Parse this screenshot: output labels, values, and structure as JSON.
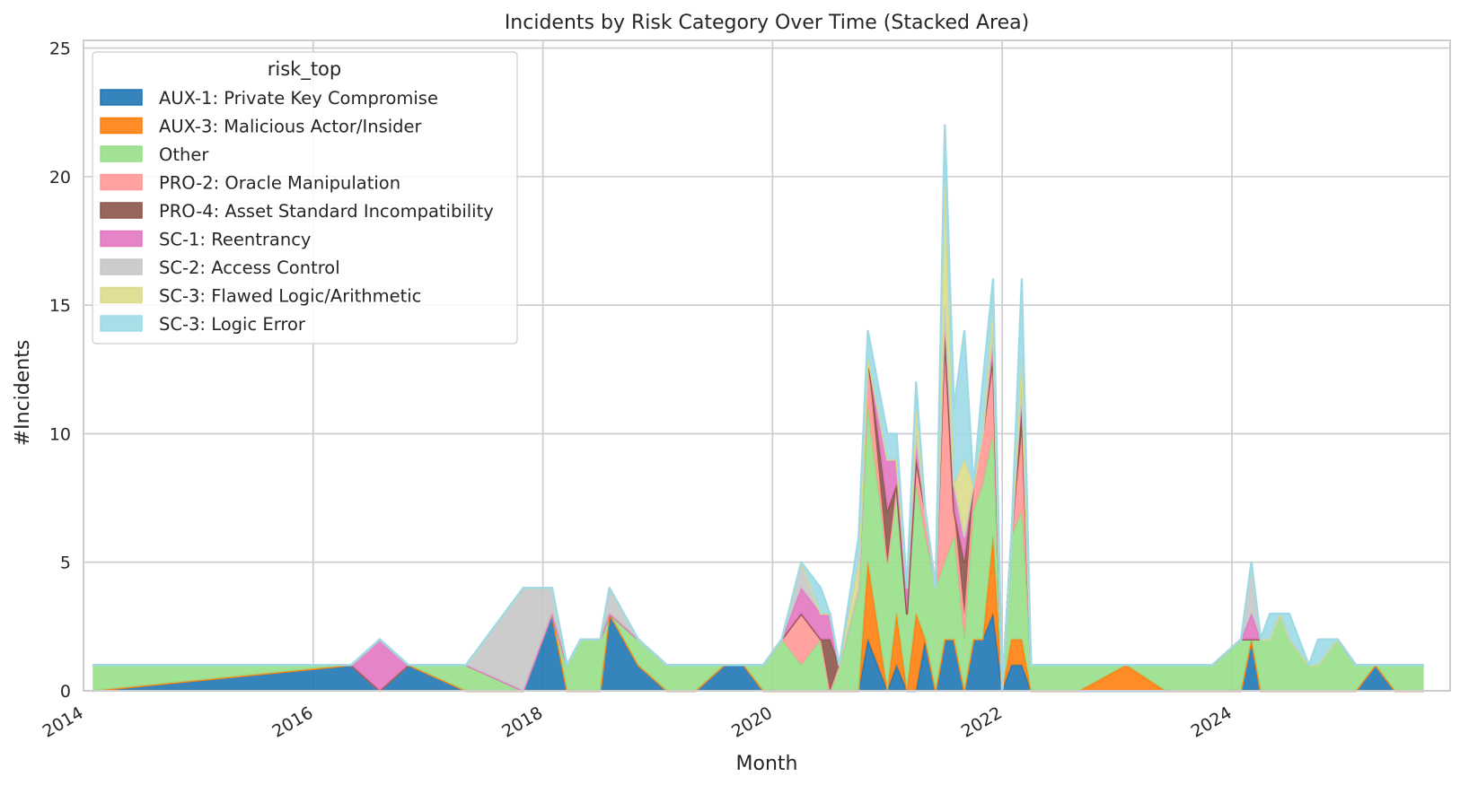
{
  "chart_data": {
    "type": "area",
    "stacked": true,
    "title": "Incidents by Risk Category Over Time (Stacked Area)",
    "xlabel": "Month",
    "ylabel": "#Incidents",
    "xlim": [
      2014.0,
      2025.9
    ],
    "ylim": [
      0,
      25.3
    ],
    "yticks": [
      0,
      5,
      10,
      15,
      20,
      25
    ],
    "xticks": [
      {
        "value": 2014,
        "label": "2014"
      },
      {
        "value": 2016,
        "label": "2016"
      },
      {
        "value": 2018,
        "label": "2018"
      },
      {
        "value": 2020,
        "label": "2020"
      },
      {
        "value": 2022,
        "label": "2022"
      },
      {
        "value": 2024,
        "label": "2024"
      }
    ],
    "grid": true,
    "legend": {
      "title": "risk_top",
      "placement": "upper left"
    },
    "x": [
      2014.08,
      2016.33,
      2016.58,
      2016.83,
      2017.33,
      2017.83,
      2018.08,
      2018.21,
      2018.33,
      2018.5,
      2018.58,
      2018.83,
      2019.08,
      2019.33,
      2019.58,
      2019.75,
      2019.92,
      2020.08,
      2020.25,
      2020.42,
      2020.5,
      2020.58,
      2020.75,
      2020.83,
      2021.0,
      2021.08,
      2021.17,
      2021.25,
      2021.33,
      2021.42,
      2021.5,
      2021.58,
      2021.67,
      2021.75,
      2021.83,
      2021.92,
      2022.0,
      2022.08,
      2022.17,
      2022.25,
      2022.33,
      2022.42,
      2022.67,
      2023.08,
      2023.42,
      2023.83,
      2024.08,
      2024.17,
      2024.25,
      2024.33,
      2024.42,
      2024.5,
      2024.67,
      2024.75,
      2024.92,
      2025.08,
      2025.25,
      2025.42,
      2025.67
    ],
    "series": [
      {
        "name": "AUX-1: Private Key Compromise",
        "color": "#1f77b4",
        "values": [
          0,
          1,
          0,
          1,
          0,
          0,
          3,
          0,
          0,
          0,
          3,
          1,
          0,
          0,
          1,
          1,
          0,
          0,
          0,
          0,
          0,
          0,
          0,
          2,
          0,
          1,
          0,
          0,
          2,
          0,
          2,
          2,
          0,
          2,
          2,
          3,
          0,
          1,
          1,
          0,
          0,
          0,
          0,
          0,
          0,
          0,
          0,
          2,
          0,
          0,
          0,
          0,
          0,
          0,
          0,
          0,
          1,
          0,
          0
        ]
      },
      {
        "name": "AUX-3: Malicious Actor/Insider",
        "color": "#ff7f0e",
        "values": [
          0,
          0,
          0,
          0,
          0,
          0,
          0,
          0,
          0,
          0,
          0,
          0,
          0,
          0,
          0,
          0,
          0,
          0,
          0,
          0,
          0,
          0,
          0,
          3,
          0,
          2,
          0,
          3,
          0,
          0,
          0,
          0,
          0,
          0,
          0,
          3,
          0,
          1,
          1,
          0,
          0,
          0,
          0,
          1,
          0,
          0,
          0,
          0,
          0,
          0,
          0,
          0,
          0,
          0,
          0,
          0,
          0,
          0,
          0
        ]
      },
      {
        "name": "Other",
        "color": "#98df8a",
        "values": [
          1,
          0,
          0,
          0,
          1,
          0,
          0,
          1,
          2,
          2,
          0,
          1,
          1,
          1,
          0,
          0,
          1,
          2,
          1,
          2,
          0,
          1,
          4,
          6,
          5,
          5,
          3,
          5,
          4,
          4,
          3,
          4,
          2,
          5,
          6,
          4,
          0,
          4,
          5,
          1,
          1,
          1,
          1,
          0,
          1,
          1,
          2,
          0,
          2,
          2,
          3,
          2,
          1,
          1,
          2,
          1,
          0,
          1,
          1
        ]
      },
      {
        "name": "PRO-2: Oracle Manipulation",
        "color": "#ff9896",
        "values": [
          0,
          0,
          0,
          0,
          0,
          0,
          0,
          0,
          0,
          0,
          0,
          0,
          0,
          0,
          0,
          0,
          0,
          0,
          2,
          0,
          0,
          0,
          0,
          2,
          0,
          0,
          0,
          1,
          1,
          0,
          8,
          1,
          1,
          1,
          2,
          3,
          0,
          0,
          3,
          0,
          0,
          0,
          0,
          0,
          0,
          0,
          0,
          0,
          0,
          0,
          0,
          0,
          0,
          0,
          0,
          0,
          0,
          0,
          0
        ]
      },
      {
        "name": "PRO-4: Asset Standard Incompatibility",
        "color": "#8c564b",
        "values": [
          0,
          0,
          0,
          0,
          0,
          0,
          0,
          0,
          0,
          0,
          0,
          0,
          0,
          0,
          0,
          0,
          0,
          0,
          0,
          0,
          2,
          0,
          0,
          0,
          2,
          0,
          0,
          0,
          0,
          0,
          1,
          0,
          2,
          0,
          0,
          0,
          0,
          0,
          1,
          0,
          0,
          0,
          0,
          0,
          0,
          0,
          0,
          0,
          0,
          0,
          0,
          0,
          0,
          0,
          0,
          0,
          0,
          0,
          0
        ]
      },
      {
        "name": "SC-1: Reentrancy",
        "color": "#e377c2",
        "values": [
          0,
          0,
          2,
          0,
          0,
          0,
          0,
          0,
          0,
          0,
          0,
          0,
          0,
          0,
          0,
          0,
          0,
          0,
          1,
          1,
          1,
          0,
          0,
          0,
          2,
          1,
          1,
          1,
          0,
          0,
          1,
          1,
          1,
          0,
          0,
          1,
          0,
          0,
          1,
          0,
          0,
          0,
          0,
          0,
          0,
          0,
          0,
          1,
          0,
          0,
          0,
          0,
          0,
          0,
          0,
          0,
          0,
          0,
          0
        ]
      },
      {
        "name": "SC-2: Access Control",
        "color": "#c7c7c7",
        "values": [
          0,
          0,
          0,
          0,
          0,
          4,
          1,
          0,
          0,
          0,
          1,
          0,
          0,
          0,
          0,
          0,
          0,
          0,
          1,
          0,
          0,
          0,
          0,
          0,
          0,
          0,
          0,
          0,
          0,
          0,
          0,
          0,
          0,
          0,
          0,
          0,
          0,
          0,
          0,
          0,
          0,
          0,
          0,
          0,
          0,
          0,
          0,
          2,
          0,
          0,
          0,
          0,
          0,
          0,
          0,
          0,
          0,
          0,
          0
        ]
      },
      {
        "name": "SC-3: Flawed Logic/Arithmetic",
        "color": "#dbdb8d",
        "values": [
          0,
          0,
          0,
          0,
          0,
          0,
          0,
          0,
          0,
          0,
          0,
          0,
          0,
          0,
          0,
          0,
          0,
          0,
          0,
          0,
          0,
          0,
          1,
          0,
          0,
          0,
          0,
          1,
          0,
          0,
          5,
          0,
          3,
          0,
          0,
          1,
          0,
          0,
          1,
          0,
          0,
          0,
          0,
          0,
          0,
          0,
          0,
          0,
          0,
          0,
          0,
          0,
          0,
          0,
          0,
          0,
          0,
          0,
          0
        ]
      },
      {
        "name": "SC-3: Logic Error",
        "color": "#9edae5",
        "values": [
          0,
          0,
          0,
          0,
          0,
          0,
          0,
          0,
          0,
          0,
          0,
          0,
          0,
          0,
          0,
          0,
          0,
          0,
          0,
          1,
          0,
          0,
          1,
          1,
          1,
          1,
          0,
          1,
          0,
          0,
          2,
          3,
          5,
          0,
          2,
          1,
          0,
          0,
          3,
          0,
          0,
          0,
          0,
          0,
          0,
          0,
          0,
          0,
          0,
          1,
          0,
          1,
          0,
          1,
          0,
          0,
          0,
          0,
          0
        ]
      }
    ]
  }
}
